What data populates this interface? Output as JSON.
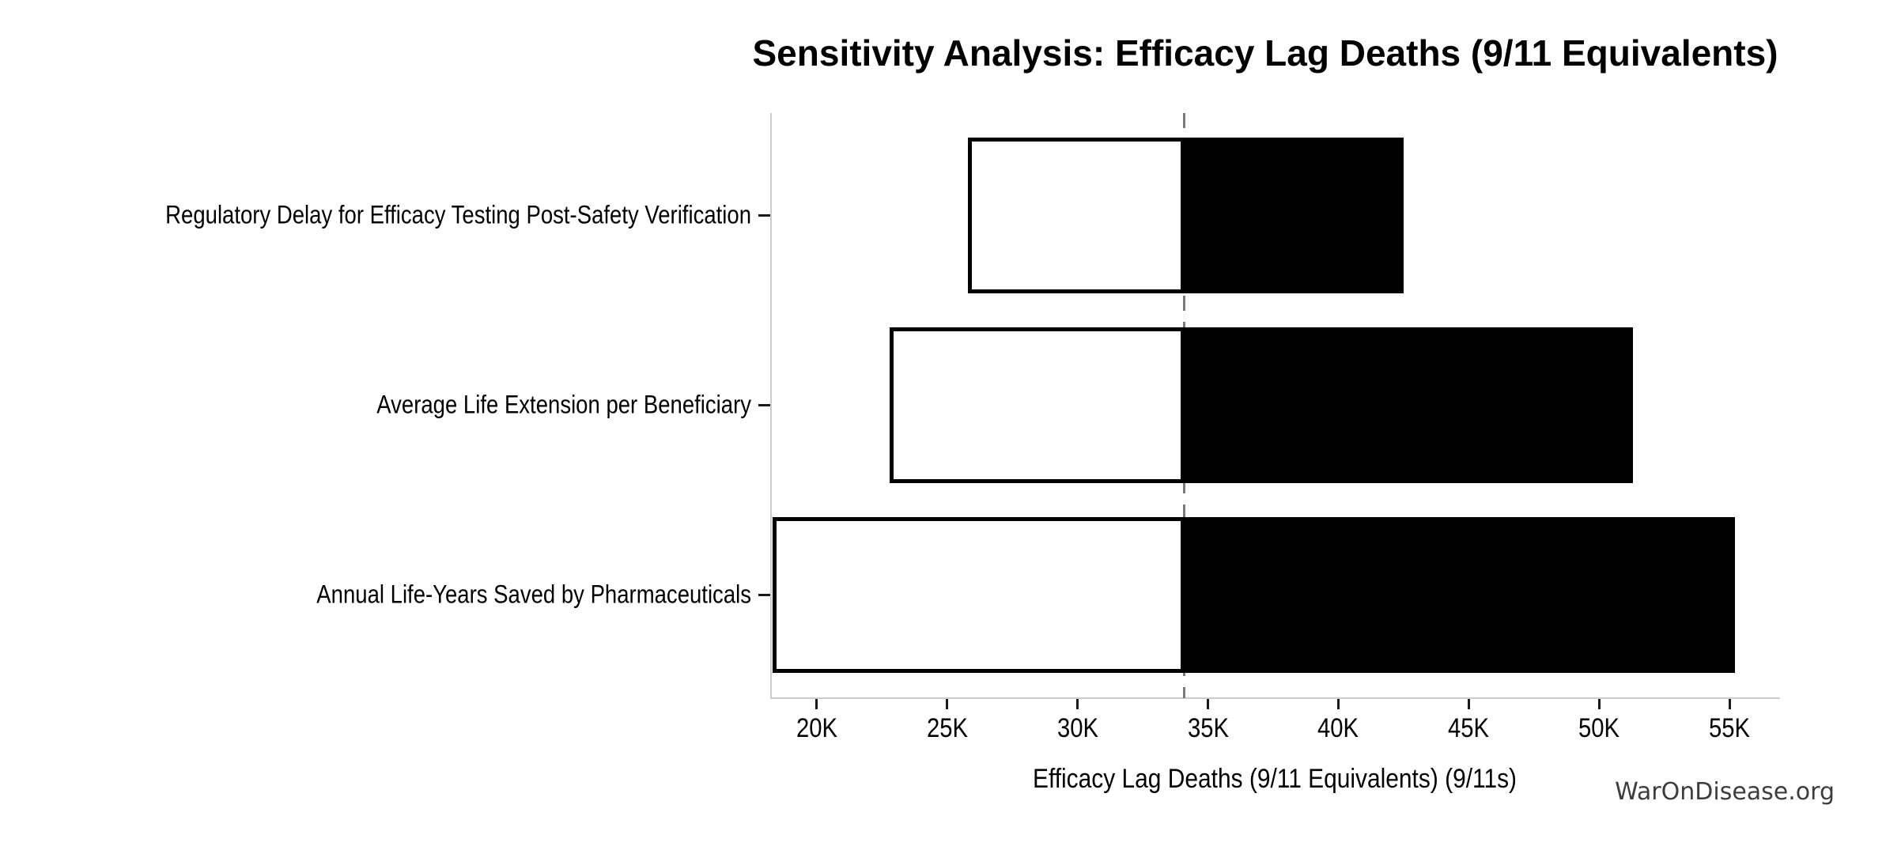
{
  "title": "Sensitivity Analysis: Efficacy Lag Deaths (9/11 Equivalents)",
  "watermark": "WarOnDisease.org",
  "chart_data": {
    "type": "bar",
    "subtype": "tornado-sensitivity",
    "orientation": "horizontal",
    "title": "Sensitivity Analysis: Efficacy Lag Deaths (9/11 Equivalents)",
    "xlabel": "Efficacy Lag Deaths (9/11 Equivalents) (9/11s)",
    "ylabel": "",
    "categories": [
      "Regulatory Delay for Efficacy Testing Post-Safety Verification",
      "Average Life Extension per Beneficiary",
      "Annual Life-Years Saved by Pharmaceuticals"
    ],
    "baseline_value": 34100,
    "series": [
      {
        "name": "low-estimate",
        "values": [
          25800,
          22800,
          18300
        ]
      },
      {
        "name": "high-estimate",
        "values": [
          42500,
          51300,
          55200
        ]
      }
    ],
    "xlim": [
      18250,
      56900
    ],
    "xticks": [
      {
        "value": 20000,
        "label": "20K"
      },
      {
        "value": 25000,
        "label": "25K"
      },
      {
        "value": 30000,
        "label": "30K"
      },
      {
        "value": 35000,
        "label": "35K"
      },
      {
        "value": 40000,
        "label": "40K"
      },
      {
        "value": 45000,
        "label": "45K"
      },
      {
        "value": 50000,
        "label": "50K"
      },
      {
        "value": 55000,
        "label": "55K"
      }
    ],
    "grid": false,
    "legend": "none",
    "colors": {
      "low_bar_fill": "#ffffff",
      "low_bar_edge": "#000000",
      "high_bar_fill": "#000000",
      "baseline_dashed_line": "#7a7a7a",
      "axis_spine": "#cccccc",
      "tick_mark": "#1a1a1a",
      "text": "#000000",
      "watermark_text": "#3d3d3d"
    }
  }
}
